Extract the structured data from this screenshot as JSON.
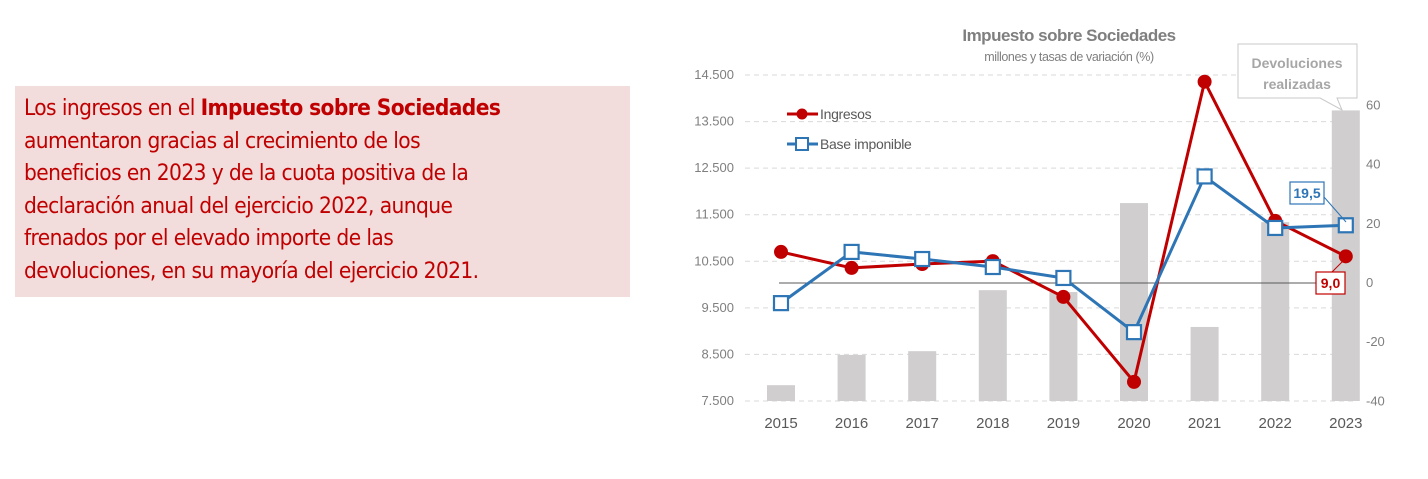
{
  "text_panel": {
    "line1_pre": "Los ingresos en el ",
    "line1_bold": "Impuesto sobre Sociedades",
    "line2": "aumentaron gracias al crecimiento de los",
    "line3": "beneficios en 2023 y de la cuota positiva de la",
    "line4": "declaración anual del ejercicio 2022, aunque",
    "line5": "frenados por el elevado importe de las",
    "line6": "devoluciones, en su mayoría del ejercicio 2021."
  },
  "colors": {
    "ingresos": "#c00000",
    "base": "#2e75b6",
    "bars": "#d0cece",
    "panel_bg": "#f2dcdc",
    "panel_text": "#c00000"
  },
  "chart_data": {
    "type": "bar+line",
    "title": "Impuesto sobre Sociedades",
    "subtitle": "millones y tasas de variación (%)",
    "categories": [
      "2015",
      "2016",
      "2017",
      "2018",
      "2019",
      "2020",
      "2021",
      "2022",
      "2023"
    ],
    "left_axis": {
      "ylim": [
        7500,
        14500
      ],
      "ticks": [
        "14.500",
        "13.500",
        "12.500",
        "11.500",
        "10.500",
        "9.500",
        "8.500",
        "7.500"
      ],
      "tick_values": [
        14500,
        13500,
        12500,
        11500,
        10500,
        9500,
        8500,
        7500
      ]
    },
    "right_axis": {
      "ylim": [
        -40,
        70
      ],
      "ticks": [
        "60",
        "40",
        "20",
        "0",
        "-20",
        "-40"
      ],
      "tick_values": [
        60,
        40,
        20,
        0,
        -20,
        -40
      ]
    },
    "bars": {
      "name": "Devoluciones realizadas",
      "axis": "left",
      "values": [
        7840,
        8490,
        8570,
        9880,
        9840,
        11750,
        9090,
        11340,
        13740
      ]
    },
    "series": [
      {
        "name": "Ingresos",
        "axis": "right",
        "marker": "circle",
        "values": [
          10.5,
          5.1,
          6.4,
          7.4,
          -4.7,
          -33.4,
          68.0,
          21.0,
          9.0
        ]
      },
      {
        "name": "Base imponible",
        "axis": "right",
        "marker": "square",
        "values": [
          -6.8,
          10.5,
          8.1,
          5.4,
          1.7,
          -16.6,
          36.0,
          18.6,
          19.5
        ]
      }
    ],
    "legend": {
      "position": "top-left",
      "items": [
        "Ingresos",
        "Base imponible"
      ]
    },
    "callout": "Devoluciones realizadas",
    "callout_lines": [
      "Devoluciones",
      "realizadas"
    ],
    "annotations": [
      {
        "series": "Base imponible",
        "category": "2023",
        "label": "19,5"
      },
      {
        "series": "Ingresos",
        "category": "2023",
        "label": "9,0"
      }
    ],
    "grid": true
  }
}
